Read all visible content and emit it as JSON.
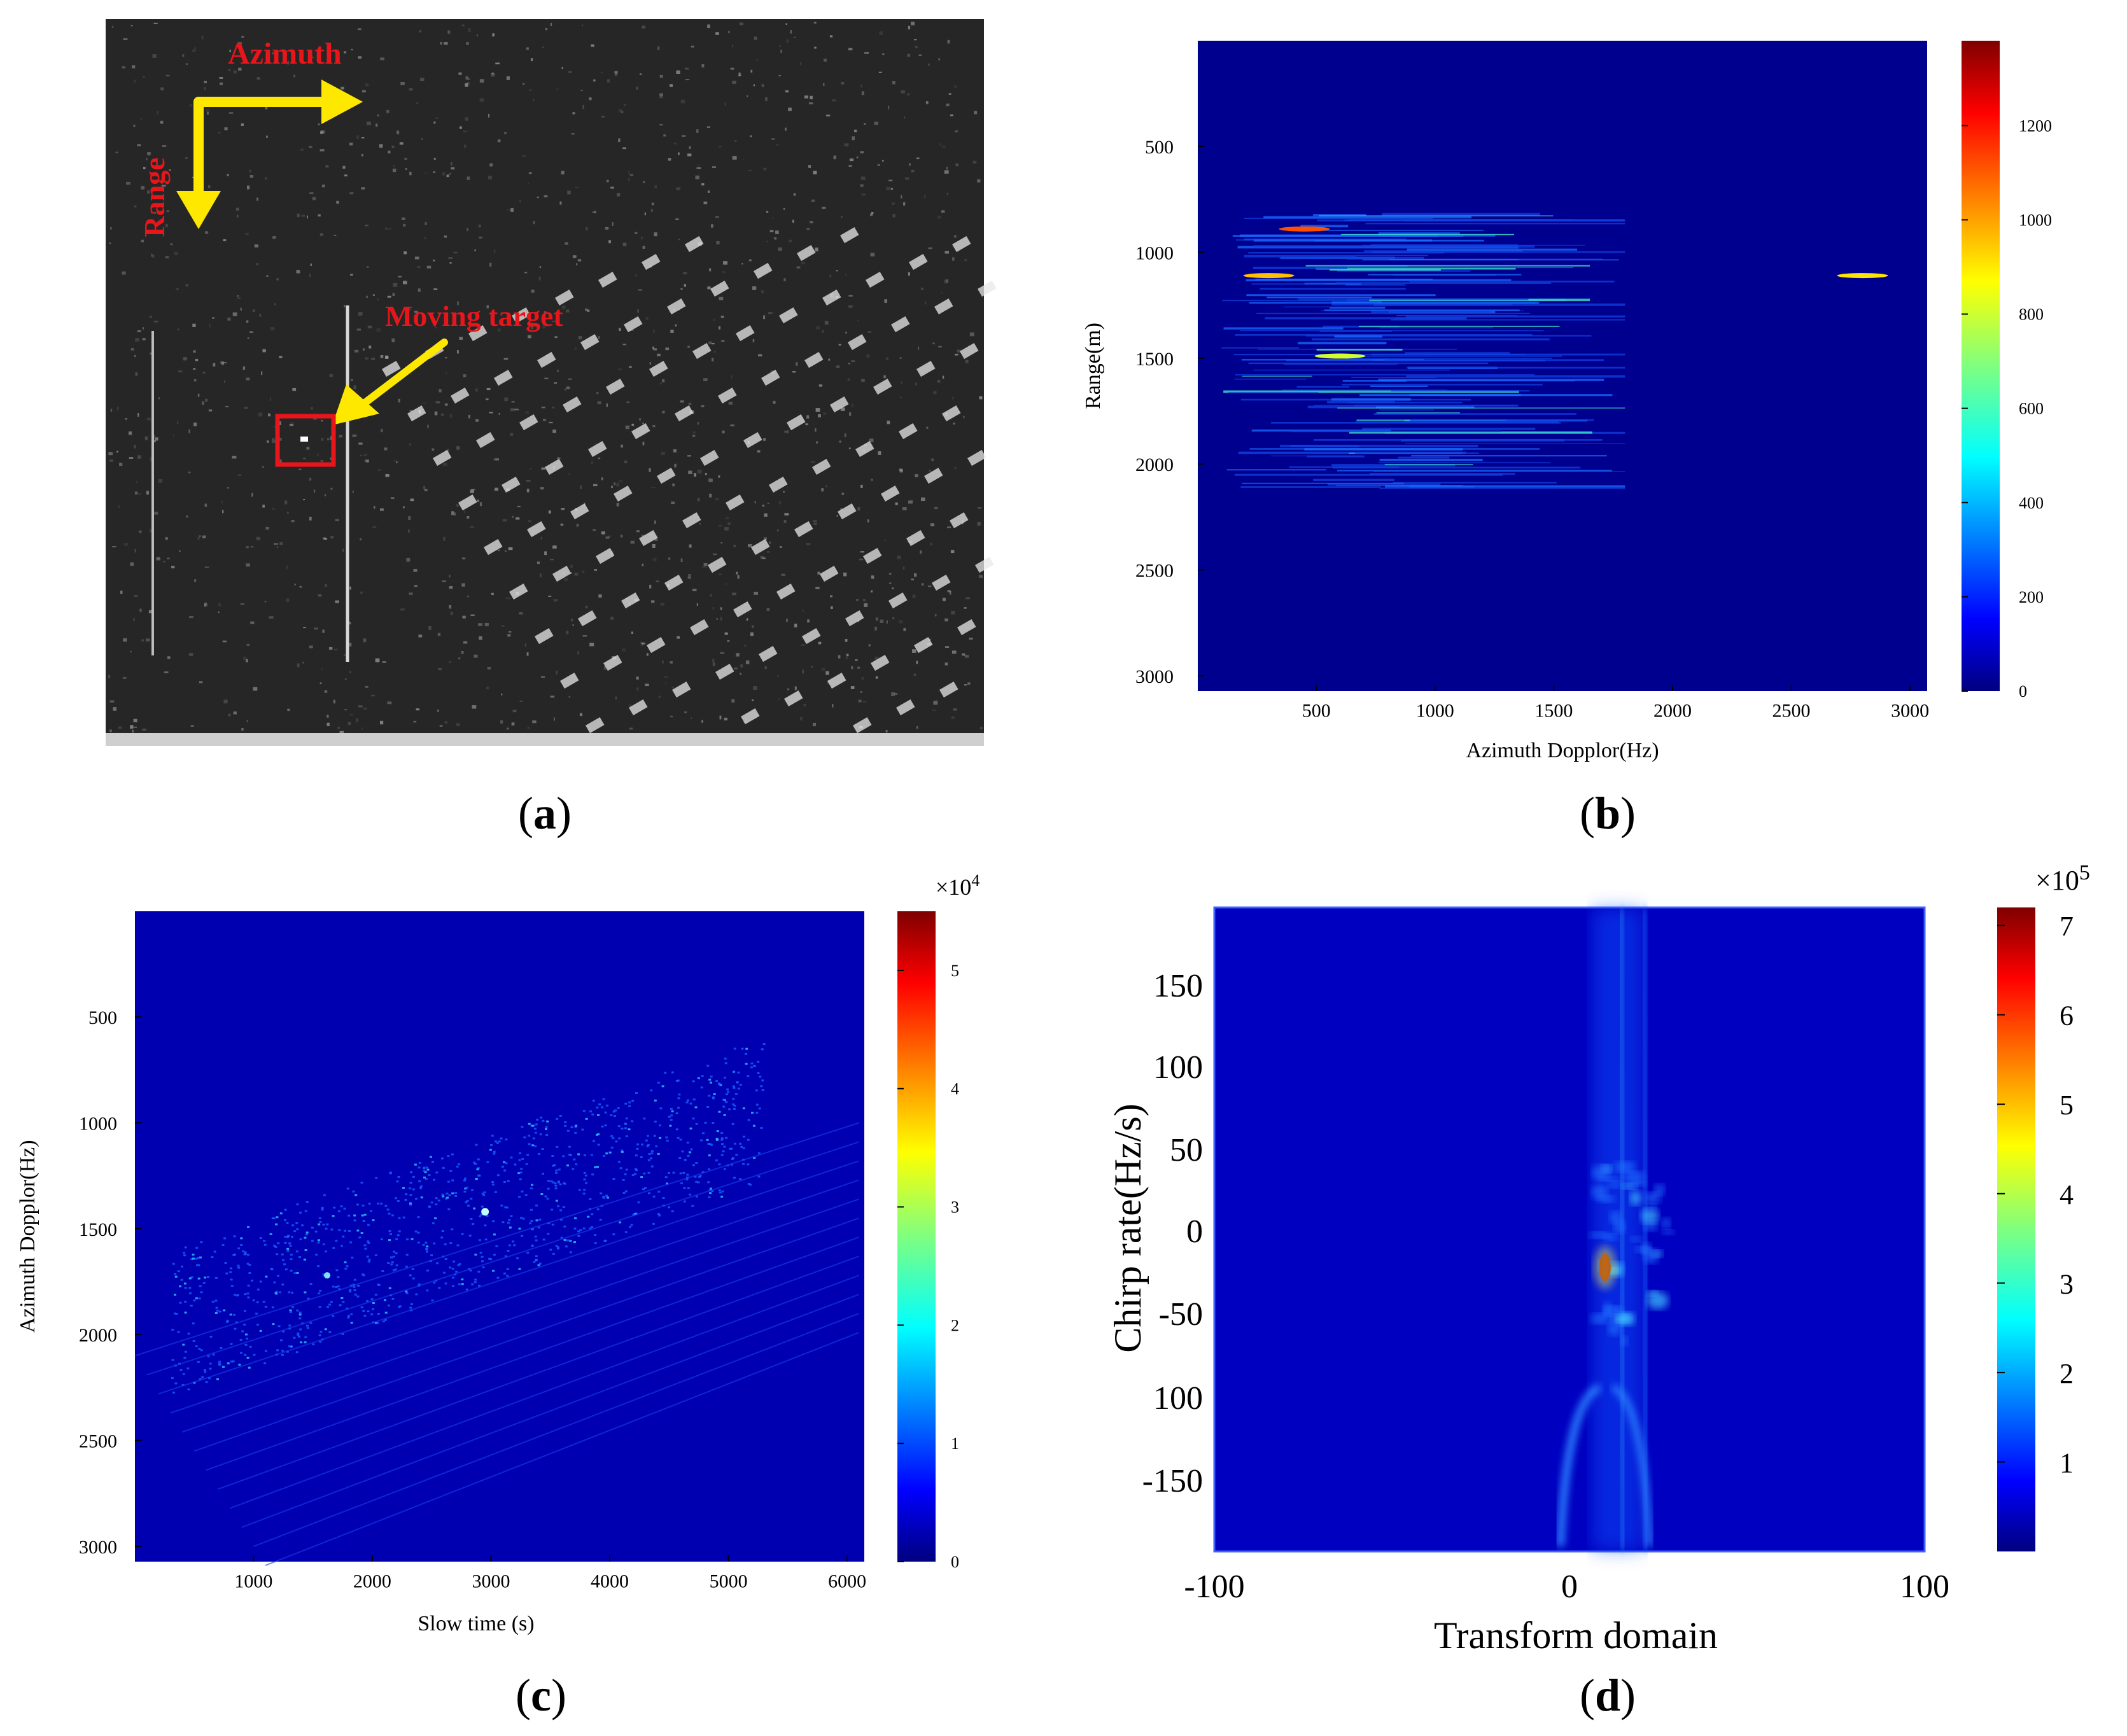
{
  "figure": {
    "panel_a": {
      "caption": "a",
      "annotations": {
        "azimuth": "Azimuth",
        "range": "Range",
        "moving_target": "Moving target"
      },
      "colors": {
        "arrow": "#ffe800",
        "label": "#e8151b",
        "box": "#e8151b"
      }
    },
    "caption_prefix": "(",
    "caption_suffix": ")"
  },
  "chart_data": [
    {
      "id": "b",
      "type": "heatmap",
      "caption": "b",
      "xlabel": "Azimuth Dopplor(Hz)",
      "ylabel": "Range(m)",
      "xlim": [
        1,
        3072
      ],
      "ylim": [
        1,
        3072
      ],
      "xticks": [
        500,
        1000,
        1500,
        2000,
        2500,
        3000
      ],
      "yticks": [
        500,
        1000,
        1500,
        2000,
        2500,
        3000
      ],
      "colorbar": {
        "ticks": [
          0,
          200,
          400,
          600,
          800,
          1000,
          1200
        ],
        "max": 1380,
        "exponent": ""
      },
      "hot_spots": [
        {
          "x": 450,
          "y": 890,
          "v": 1100
        },
        {
          "x": 300,
          "y": 1110,
          "v": 950
        },
        {
          "x": 600,
          "y": 1490,
          "v": 800
        },
        {
          "x": 2800,
          "y": 1110,
          "v": 900
        }
      ]
    },
    {
      "id": "c",
      "type": "heatmap",
      "caption": "c",
      "xlabel": "Slow time (s)",
      "ylabel": "Azimuth Dopplor(Hz)",
      "xlim": [
        1,
        6144
      ],
      "ylim": [
        1,
        3072
      ],
      "xticks": [
        1000,
        2000,
        3000,
        4000,
        5000,
        6000
      ],
      "yticks": [
        500,
        1000,
        1500,
        2000,
        2500,
        3000
      ],
      "colorbar": {
        "ticks": [
          0,
          1,
          2,
          3,
          4,
          5
        ],
        "max": 5.5,
        "exponent": "4"
      }
    },
    {
      "id": "d",
      "type": "heatmap",
      "caption": "d",
      "xlabel": "Transform domain",
      "ylabel": "Chirp rate(Hz/s)",
      "xlim": [
        -100,
        100
      ],
      "ylim": [
        -195,
        195
      ],
      "xticks": [
        -100,
        0,
        100
      ],
      "yticks": [
        150,
        100,
        50,
        0,
        -50,
        100,
        -150
      ],
      "colorbar": {
        "ticks": [
          1,
          2,
          3,
          4,
          5,
          6,
          7
        ],
        "max": 7.2,
        "exponent": "5"
      },
      "peak": {
        "x": 10,
        "y": -22,
        "v": 7.1
      }
    }
  ]
}
